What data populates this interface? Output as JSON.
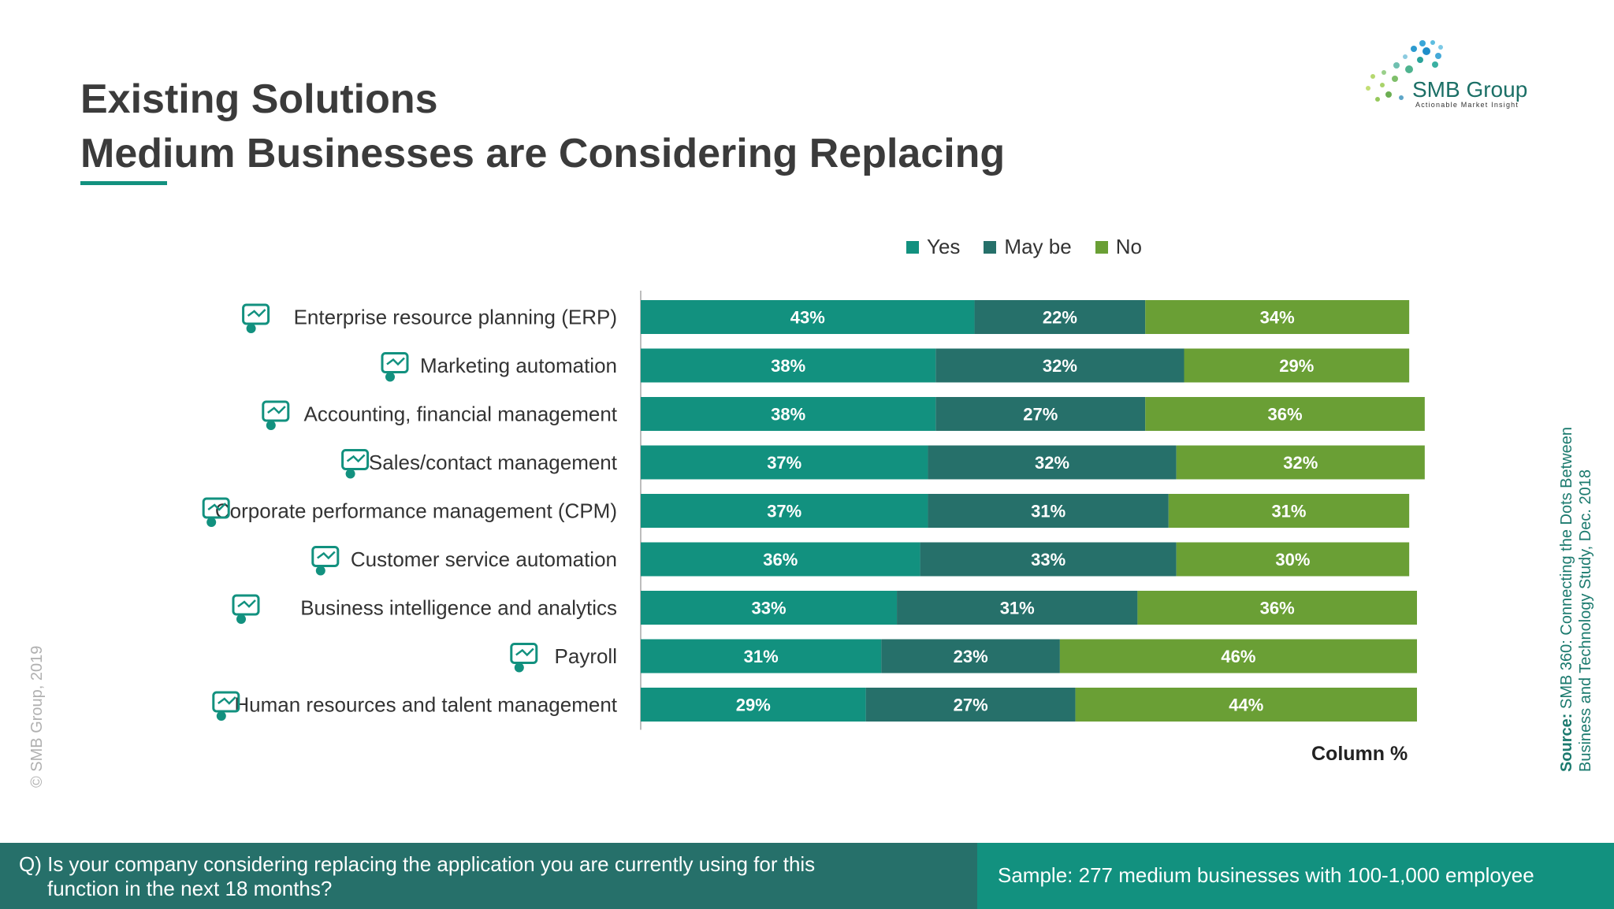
{
  "header": {
    "title_line1": "Existing Solutions",
    "title_line2": "Medium Businesses are Considering Replacing"
  },
  "logo": {
    "name": "SMB Group",
    "tagline": "Actionable Market Insight"
  },
  "legend": [
    {
      "label": "Yes",
      "color": "#12917f"
    },
    {
      "label": "May be",
      "color": "#26706a"
    },
    {
      "label": "No",
      "color": "#6a9f35"
    }
  ],
  "chart_data": {
    "type": "bar",
    "orientation": "horizontal",
    "stacked": true,
    "categories": [
      "Enterprise resource planning (ERP)",
      "Marketing automation",
      "Accounting, financial management",
      "Sales/contact management",
      "Corporate performance management (CPM)",
      "Customer service automation",
      "Business intelligence and analytics",
      "Payroll",
      "Human resources and talent management"
    ],
    "category_icons": [
      "presentation-board-icon",
      "megaphone-icon",
      "calculator-spreadsheet-icon",
      "price-tag-percent-icon",
      "presenter-chart-icon",
      "customer-service-hand-icon",
      "analytics-monitor-icon",
      "payroll-money-hand-icon",
      "talent-search-icon"
    ],
    "series": [
      {
        "name": "Yes",
        "color": "#12917f",
        "values": [
          43,
          38,
          38,
          37,
          37,
          36,
          33,
          31,
          29
        ]
      },
      {
        "name": "May be",
        "color": "#26706a",
        "values": [
          22,
          32,
          27,
          32,
          31,
          33,
          31,
          23,
          27
        ]
      },
      {
        "name": "No",
        "color": "#6a9f35",
        "values": [
          34,
          29,
          36,
          32,
          31,
          30,
          36,
          46,
          44
        ]
      }
    ],
    "value_suffix": "%",
    "xlabel": "Column %",
    "legend_position": "top"
  },
  "copyright": "© SMB Group, 2019",
  "source": {
    "label": "Source:",
    "text": "SMB 360: Connecting the Dots Between Business and Technology  Study, Dec. 2018"
  },
  "footer": {
    "question_line1": "Q) Is your company considering replacing the application you are currently using for this",
    "question_line2": "function in the next 18 months?",
    "sample": "Sample: 277 medium businesses with 100-1,000 employee"
  }
}
